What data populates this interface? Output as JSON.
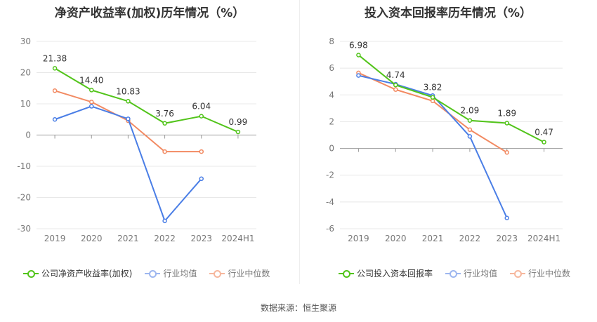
{
  "chart_data": [
    {
      "type": "line",
      "title": "净资产收益率(加权)历年情况（%）",
      "categories": [
        "2019",
        "2020",
        "2021",
        "2022",
        "2023",
        "2024H1"
      ],
      "yticks": [
        "30",
        "20",
        "10",
        "0",
        "-10",
        "-20",
        "-30"
      ],
      "ylim": [
        -30,
        30
      ],
      "grid": true,
      "legend_position": "bottom",
      "series": [
        {
          "name": "公司净资产收益率(加权)",
          "color": "#52c41a",
          "values": [
            21.38,
            14.4,
            10.83,
            3.76,
            6.04,
            0.99
          ],
          "labels": [
            "21.38",
            "14.40",
            "10.83",
            "3.76",
            "6.04",
            "0.99"
          ]
        },
        {
          "name": "行业均值",
          "color": "#4a7ee6",
          "values": [
            5.0,
            9.2,
            5.2,
            -27.5,
            -14.0,
            null
          ]
        },
        {
          "name": "行业中位数",
          "color": "#f28a62",
          "values": [
            14.2,
            10.6,
            4.6,
            -5.3,
            -5.3,
            null
          ]
        }
      ]
    },
    {
      "type": "line",
      "title": "投入资本回报率历年情况（%）",
      "categories": [
        "2019",
        "2020",
        "2021",
        "2022",
        "2023",
        "2024H1"
      ],
      "yticks": [
        "8",
        "6",
        "4",
        "2",
        "0",
        "-2",
        "-4",
        "-6"
      ],
      "ylim": [
        -6,
        8
      ],
      "grid": true,
      "legend_position": "bottom",
      "series": [
        {
          "name": "公司投入资本回报率",
          "color": "#52c41a",
          "values": [
            6.98,
            4.74,
            3.82,
            2.09,
            1.89,
            0.47
          ],
          "labels": [
            "6.98",
            "4.74",
            "3.82",
            "2.09",
            "1.89",
            "0.47"
          ]
        },
        {
          "name": "行业均值",
          "color": "#4a7ee6",
          "values": [
            5.45,
            4.8,
            3.95,
            0.9,
            -5.2,
            null
          ]
        },
        {
          "name": "行业中位数",
          "color": "#f28a62",
          "values": [
            5.65,
            4.4,
            3.55,
            1.4,
            -0.3,
            null
          ]
        }
      ]
    }
  ],
  "source": "数据来源：恒生聚源"
}
